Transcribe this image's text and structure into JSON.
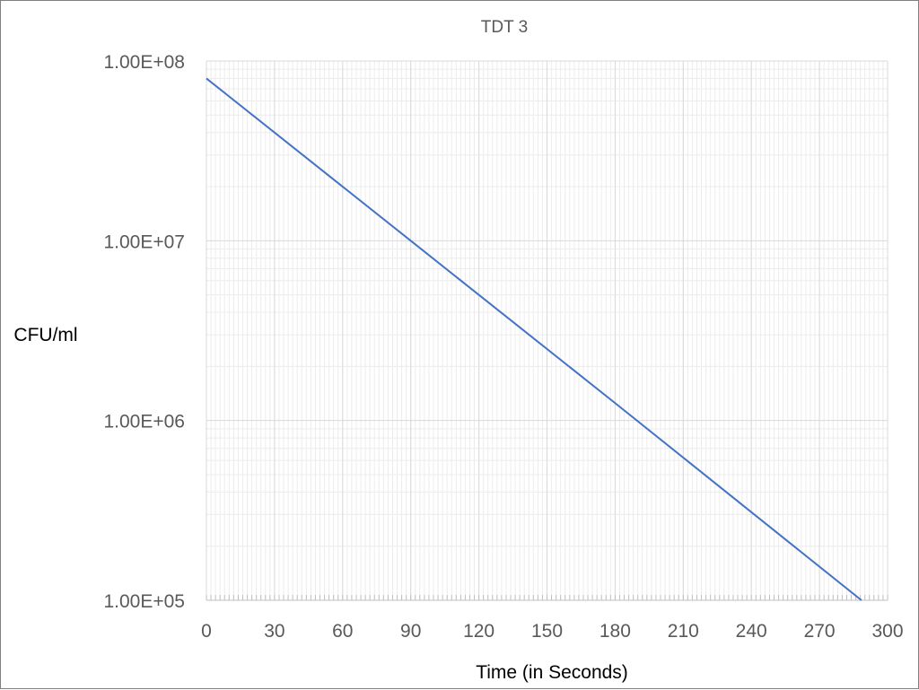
{
  "chart_data": {
    "type": "line",
    "title": "TDT 3",
    "xlabel": "Time (in Seconds)",
    "ylabel": "CFU/ml",
    "xlim": [
      0,
      300
    ],
    "x_ticks": [
      0,
      30,
      60,
      90,
      120,
      150,
      180,
      210,
      240,
      270,
      300
    ],
    "x_minor_step": 2,
    "ylim": [
      100000,
      100000000
    ],
    "y_scale": "log",
    "y_ticks": [
      100000,
      1000000,
      10000000,
      100000000
    ],
    "y_tick_labels": [
      "1.00E+05",
      "1.00E+06",
      "1.00E+07",
      "1.00E+08"
    ],
    "grid": true,
    "legend": "none",
    "series": [
      {
        "color": "#4472c4",
        "x": [
          0,
          90,
          180,
          288.5
        ],
        "y": [
          80000000,
          10000000,
          1250000,
          100000
        ]
      }
    ]
  }
}
